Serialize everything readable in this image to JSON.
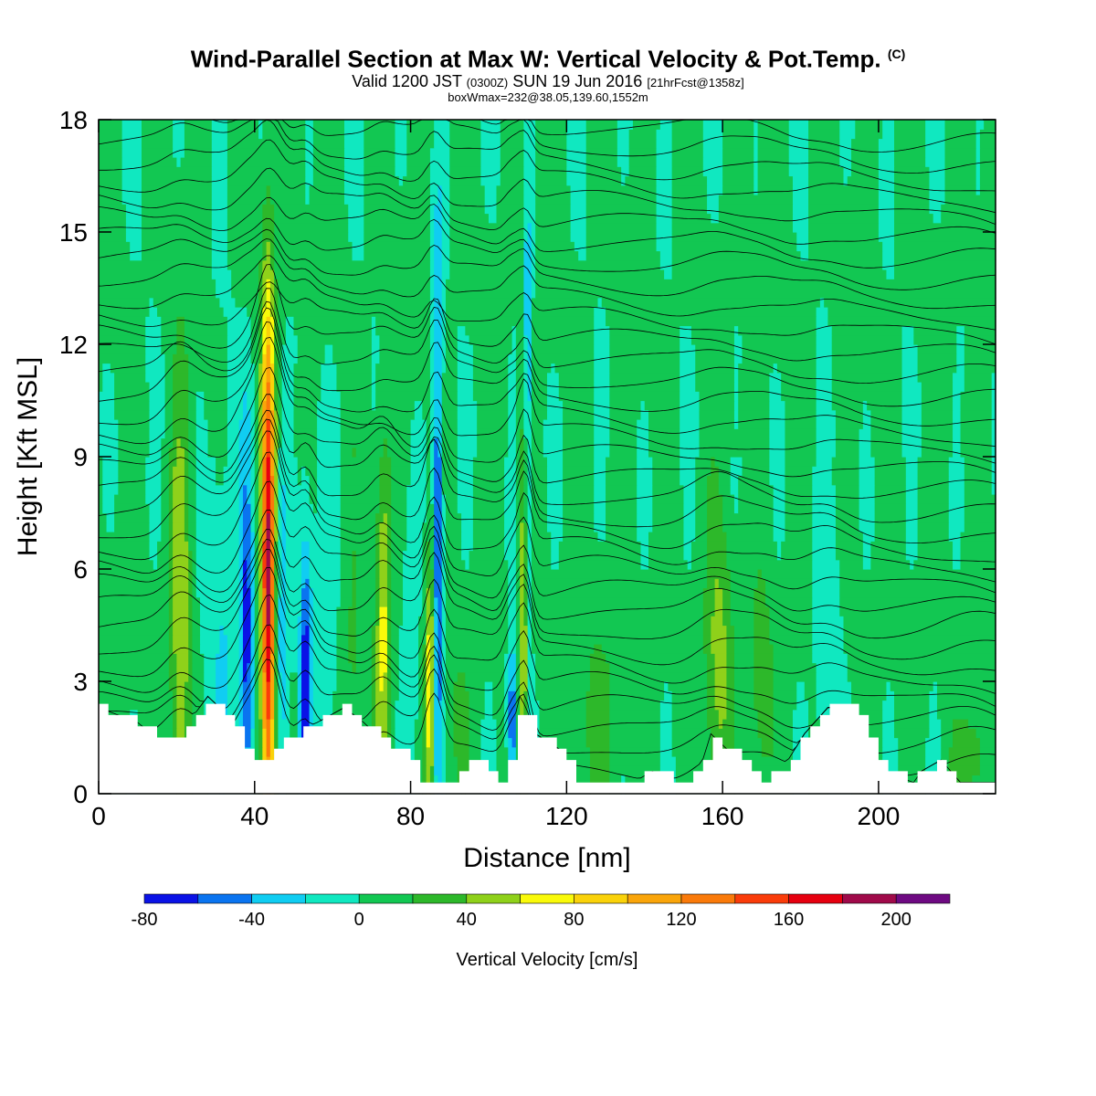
{
  "title": {
    "main": "Wind-Parallel Section at Max W: Vertical Velocity & Pot.Temp.",
    "copyright": "(C)",
    "valid_prefix": "Valid 1200 JST",
    "valid_utc": "(0300Z)",
    "valid_date": "SUN 19 Jun 2016",
    "forecast": "[21hrFcst@1358z]",
    "boxwmax": "boxWmax=232@38.05,139.60,1552m"
  },
  "chart_data": {
    "type": "heatmap",
    "xlabel": "Distance [nm]",
    "ylabel": "Height [Kft MSL]",
    "xlim": [
      0,
      230
    ],
    "ylim": [
      0,
      18
    ],
    "x_ticks": [
      "0",
      "40",
      "80",
      "120",
      "160",
      "200"
    ],
    "y_ticks": [
      "0",
      "3",
      "6",
      "9",
      "12",
      "15",
      "18"
    ],
    "colorbar": {
      "label": "Vertical Velocity [cm/s]",
      "tick_labels": [
        "-80",
        "-40",
        "0",
        "40",
        "80",
        "120",
        "160",
        "200"
      ],
      "bins": [
        -80,
        -60,
        -40,
        -20,
        0,
        20,
        40,
        60,
        80,
        100,
        120,
        140,
        160,
        180,
        200,
        220
      ],
      "colors": [
        "#0a12e6",
        "#0a74f0",
        "#10cdf2",
        "#10e8c0",
        "#12c752",
        "#2db82a",
        "#8fd11a",
        "#fafa0a",
        "#fad20a",
        "#faa50a",
        "#fa7a0a",
        "#fa3c0a",
        "#e6000f",
        "#a00a4a",
        "#6e0a82"
      ]
    },
    "background_wvel": 5,
    "vertical_velocity_features": [
      {
        "x": 2,
        "z_top": 3.5,
        "w": 10,
        "z": 4,
        "width": 6
      },
      {
        "x": 21,
        "z_top": 7.5,
        "w": 55,
        "z": 4.5,
        "width": 2.5
      },
      {
        "x": 32,
        "z_top": 7,
        "w": -25,
        "z": 4,
        "width": 5
      },
      {
        "x": 38,
        "z_top": 6,
        "w": -70,
        "z": 4,
        "width": 1.7
      },
      {
        "x": 43.5,
        "z_top": 8.5,
        "w": 180,
        "z": 5.5,
        "width": 1.8
      },
      {
        "x": 47,
        "z_top": 6,
        "w": -40,
        "z": 4,
        "width": 2
      },
      {
        "x": 53,
        "z_top": 5,
        "w": -75,
        "z": 3,
        "width": 1.5
      },
      {
        "x": 58,
        "z_top": 6,
        "w": -25,
        "z": 4,
        "width": 4
      },
      {
        "x": 65,
        "z_top": 5,
        "w": 20,
        "z": 3,
        "width": 4
      },
      {
        "x": 73,
        "z_top": 6,
        "w": 60,
        "z": 4.5,
        "width": 2
      },
      {
        "x": 80,
        "z_top": 5,
        "w": -25,
        "z": 4,
        "width": 2
      },
      {
        "x": 85,
        "z_top": 4.5,
        "w": 75,
        "z": 3,
        "width": 1.2
      },
      {
        "x": 87,
        "z_top": 9,
        "w": -70,
        "z": 7,
        "width": 1.2
      },
      {
        "x": 92,
        "z_top": 3,
        "w": 20,
        "z": 2,
        "width": 3
      },
      {
        "x": 106,
        "z_top": 3,
        "w": -70,
        "z": 2,
        "width": 1.2
      },
      {
        "x": 109,
        "z_top": 6.5,
        "w": 70,
        "z": 4,
        "width": 1
      },
      {
        "x": 110,
        "z_top": 9,
        "w": -40,
        "z": 10,
        "width": 1
      },
      {
        "x": 128,
        "z_top": 4,
        "w": 20,
        "z": 2,
        "width": 6
      },
      {
        "x": 159,
        "z_top": 5,
        "w": 45,
        "z": 3.5,
        "width": 3.5
      },
      {
        "x": 170,
        "z_top": 4,
        "w": 30,
        "z": 3,
        "width": 3
      },
      {
        "x": 187,
        "z_top": 5,
        "w": -25,
        "z": 3.5,
        "width": 3
      },
      {
        "x": 224,
        "z_top": 1.5,
        "w": 30,
        "z": 1,
        "width": 5
      }
    ],
    "terrain_kft": [
      [
        0,
        2.3
      ],
      [
        10,
        1.9
      ],
      [
        17,
        1.3
      ],
      [
        23,
        1.9
      ],
      [
        28,
        2.6
      ],
      [
        31,
        2.3
      ],
      [
        36,
        1.5
      ],
      [
        42,
        0.7
      ],
      [
        44,
        1.0
      ],
      [
        49,
        1.6
      ],
      [
        56,
        1.9
      ],
      [
        63,
        2.3
      ],
      [
        68,
        1.9
      ],
      [
        74,
        1.3
      ],
      [
        79,
        1.0
      ],
      [
        83,
        0.3
      ],
      [
        91,
        0.3
      ],
      [
        96,
        0.9
      ],
      [
        103,
        0.3
      ],
      [
        107,
        1.7
      ],
      [
        108,
        2.6
      ],
      [
        112,
        1.6
      ],
      [
        118,
        1.2
      ],
      [
        122,
        0.3
      ],
      [
        137,
        0.3
      ],
      [
        142,
        0.6
      ],
      [
        150,
        0.3
      ],
      [
        154,
        0.6
      ],
      [
        157,
        1.6
      ],
      [
        163,
        1.0
      ],
      [
        169,
        0.3
      ],
      [
        175,
        0.6
      ],
      [
        181,
        1.6
      ],
      [
        187,
        2.3
      ],
      [
        194,
        2.3
      ],
      [
        201,
        0.6
      ],
      [
        209,
        0.3
      ],
      [
        211,
        0.6
      ],
      [
        216,
        0.9
      ],
      [
        221,
        0.3
      ],
      [
        230,
        0.3
      ]
    ]
  }
}
